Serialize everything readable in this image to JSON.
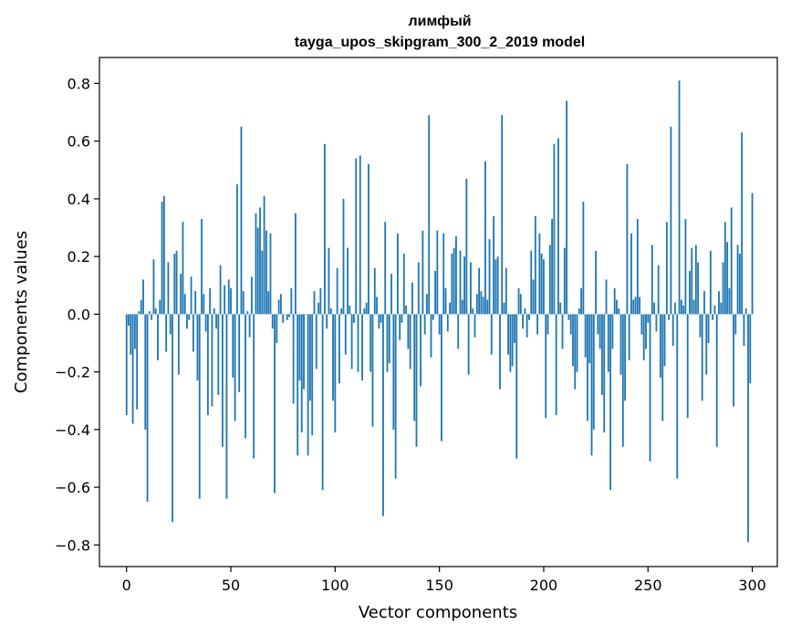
{
  "chart_data": {
    "type": "bar",
    "title": "лимфый",
    "subtitle": "tayga_upos_skipgram_300_2_2019 model",
    "xlabel": "Vector components",
    "ylabel": "Components values",
    "xlim": [
      -13,
      312
    ],
    "ylim": [
      -0.875,
      0.89
    ],
    "xticks": [
      0,
      50,
      100,
      150,
      200,
      250,
      300
    ],
    "xtick_labels": [
      "0",
      "50",
      "100",
      "150",
      "200",
      "250",
      "300"
    ],
    "yticks": [
      -0.8,
      -0.6,
      -0.4,
      -0.2,
      0.0,
      0.2,
      0.4,
      0.6,
      0.8
    ],
    "ytick_labels": [
      "−0.8",
      "−0.6",
      "−0.4",
      "−0.2",
      "0.0",
      "0.2",
      "0.4",
      "0.6",
      "0.8"
    ],
    "grid": false,
    "bar_color": "#1f77b4",
    "values": [
      -0.35,
      -0.04,
      -0.14,
      -0.38,
      -0.12,
      -0.33,
      0.01,
      0.05,
      0.12,
      -0.4,
      -0.65,
      0.01,
      -0.02,
      0.19,
      0.02,
      -0.16,
      0.05,
      0.39,
      0.41,
      -0.13,
      0.18,
      -0.07,
      -0.72,
      0.21,
      0.22,
      -0.21,
      0.14,
      0.32,
      0.07,
      -0.05,
      -0.02,
      0.13,
      -0.13,
      0.08,
      -0.23,
      -0.64,
      0.33,
      0.07,
      -0.06,
      -0.35,
      0.09,
      -0.32,
      0.02,
      -0.05,
      -0.28,
      0.17,
      -0.46,
      0.1,
      -0.64,
      0.12,
      0.09,
      -0.22,
      -0.37,
      0.45,
      -0.27,
      0.65,
      0.08,
      -0.43,
      0.01,
      -0.08,
      0.13,
      -0.5,
      0.35,
      0.3,
      0.37,
      0.22,
      0.41,
      0.29,
      0.08,
      0.28,
      -0.05,
      -0.62,
      -0.1,
      0.05,
      0.07,
      -0.03,
      0.0,
      -0.02,
      -0.01,
      0.09,
      -0.31,
      0.35,
      -0.49,
      -0.23,
      -0.41,
      -0.26,
      0.0,
      -0.49,
      -0.3,
      -0.42,
      0.08,
      -0.19,
      0.04,
      0.09,
      -0.61,
      0.59,
      -0.05,
      0.23,
      0.02,
      -0.3,
      -0.41,
      0.16,
      -0.24,
      0.02,
      0.4,
      -0.14,
      0.23,
      0.03,
      -0.19,
      -0.03,
      0.54,
      -0.2,
      0.55,
      -0.23,
      0.02,
      0.04,
      0.52,
      -0.2,
      -0.39,
      0.16,
      0.06,
      -0.05,
      -0.03,
      -0.7,
      0.32,
      -0.2,
      -0.17,
      0.14,
      -0.4,
      -0.57,
      0.28,
      -0.09,
      -0.03,
      0.21,
      0.03,
      -0.12,
      -0.19,
      0.11,
      -0.37,
      -0.46,
      0.18,
      -0.25,
      0.29,
      -0.07,
      0.07,
      0.69,
      -0.15,
      -0.02,
      0.15,
      0.29,
      -0.07,
      -0.44,
      0.28,
      0.09,
      -0.06,
      0.04,
      0.21,
      0.23,
      0.27,
      -0.12,
      0.22,
      0.05,
      0.2,
      0.47,
      -0.21,
      0.18,
      0.02,
      -0.08,
      0.07,
      0.16,
      0.08,
      0.06,
      0.53,
      0.05,
      0.26,
      -0.14,
      0.34,
      0.19,
      0.2,
      -0.26,
      0.69,
      0.04,
      0.16,
      -0.14,
      -0.2,
      -0.18,
      -0.1,
      -0.5,
      0.09,
      0.07,
      -0.05,
      0.02,
      -0.08,
      -0.02,
      0.22,
      0.12,
      0.34,
      -0.07,
      0.28,
      0.21,
      0.19,
      -0.36,
      -0.07,
      0.24,
      0.33,
      0.59,
      -0.35,
      0.61,
      0.04,
      -0.12,
      0.23,
      0.74,
      -0.02,
      -0.07,
      -0.18,
      -0.26,
      -0.2,
      0.02,
      0.09,
      0.39,
      -0.15,
      -0.37,
      -0.17,
      -0.49,
      -0.4,
      0.22,
      -0.07,
      -0.12,
      -0.28,
      -0.41,
      0.12,
      -0.2,
      -0.61,
      -0.12,
      0.09,
      0.05,
      0.02,
      -0.21,
      -0.46,
      -0.3,
      0.52,
      -0.16,
      0.28,
      0.05,
      0.06,
      0.33,
      0.06,
      -0.07,
      -0.16,
      -0.12,
      -0.03,
      -0.51,
      0.24,
      0.04,
      -0.06,
      0.17,
      -0.22,
      -0.37,
      -0.18,
      0.32,
      -0.02,
      0.65,
      -0.11,
      0.04,
      -0.57,
      0.81,
      0.05,
      0.03,
      0.33,
      -0.36,
      0.15,
      0.23,
      0.05,
      0.24,
      0.18,
      -0.08,
      -0.3,
      0.08,
      -0.21,
      -0.1,
      0.22,
      -0.02,
      0.03,
      -0.46,
      0.08,
      0.04,
      0.18,
      0.32,
      0.25,
      0.09,
      0.37,
      -0.32,
      -0.07,
      0.24,
      0.21,
      0.63,
      -0.11,
      0.02,
      -0.79,
      -0.24,
      0.42
    ]
  }
}
